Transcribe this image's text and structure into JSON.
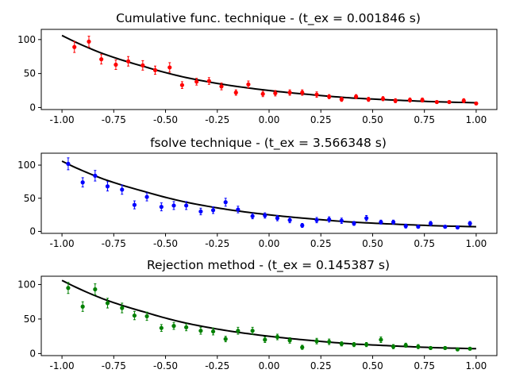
{
  "chart_data": [
    {
      "type": "scatter",
      "title": "Cumulative func. technique - (t_ex = 0.001846 s)",
      "xlabel": "",
      "ylabel": "",
      "xlim": [
        -1.1,
        1.1
      ],
      "ylim": [
        -3,
        115
      ],
      "xticks": [
        "-1.00",
        "-0.75",
        "-0.50",
        "-0.25",
        "0.00",
        "0.25",
        "0.50",
        "0.75",
        "1.00"
      ],
      "yticks": [
        "0",
        "50",
        "100"
      ],
      "grid": false,
      "colors": {
        "points": "#ff0000",
        "fit": "#000000"
      },
      "points": {
        "x": [
          -0.94,
          -0.87,
          -0.81,
          -0.74,
          -0.68,
          -0.61,
          -0.55,
          -0.48,
          -0.42,
          -0.35,
          -0.29,
          -0.23,
          -0.16,
          -0.1,
          -0.03,
          0.03,
          0.1,
          0.16,
          0.23,
          0.29,
          0.35,
          0.42,
          0.48,
          0.55,
          0.61,
          0.68,
          0.74,
          0.81,
          0.87,
          0.94,
          1.0
        ],
        "y": [
          89,
          97,
          71,
          63,
          68,
          62,
          55,
          59,
          33,
          38,
          39,
          31,
          22,
          34,
          20,
          21,
          22,
          22,
          19,
          16,
          12,
          16,
          12,
          13,
          10,
          11,
          11,
          8,
          8,
          10,
          6
        ],
        "err": [
          8,
          8,
          7,
          7,
          7,
          7,
          6,
          7,
          5,
          5,
          5,
          5,
          4,
          5,
          4,
          4,
          4,
          4,
          4,
          3,
          3,
          3,
          3,
          3,
          3,
          3,
          3,
          2,
          2,
          3,
          2
        ]
      },
      "fit": {
        "x": [
          -1.0,
          -0.8,
          -0.6,
          -0.4,
          -0.2,
          0.0,
          0.2,
          0.4,
          0.6,
          0.8,
          1.0
        ],
        "y": [
          106,
          79,
          60,
          44,
          33,
          25,
          19,
          14,
          11,
          8.5,
          7
        ]
      }
    },
    {
      "type": "scatter",
      "title": "fsolve technique - (t_ex = 3.566348 s)",
      "xlabel": "",
      "ylabel": "",
      "xlim": [
        -1.1,
        1.1
      ],
      "ylim": [
        -3,
        118
      ],
      "xticks": [
        "-1.00",
        "-0.75",
        "-0.50",
        "-0.25",
        "0.00",
        "0.25",
        "0.50",
        "0.75",
        "1.00"
      ],
      "yticks": [
        "0",
        "50",
        "100"
      ],
      "grid": false,
      "colors": {
        "points": "#0000ff",
        "fit": "#000000"
      },
      "points": {
        "x": [
          -0.97,
          -0.9,
          -0.84,
          -0.78,
          -0.71,
          -0.65,
          -0.59,
          -0.52,
          -0.46,
          -0.4,
          -0.33,
          -0.27,
          -0.21,
          -0.15,
          -0.08,
          -0.02,
          0.04,
          0.1,
          0.16,
          0.23,
          0.29,
          0.35,
          0.41,
          0.47,
          0.54,
          0.6,
          0.66,
          0.72,
          0.78,
          0.85,
          0.91,
          0.97
        ],
        "y": [
          102,
          74,
          84,
          68,
          63,
          40,
          52,
          37,
          39,
          39,
          30,
          32,
          44,
          33,
          23,
          24,
          20,
          17,
          9,
          17,
          18,
          16,
          12,
          20,
          14,
          14,
          8,
          7,
          12,
          7,
          6,
          12
        ],
        "err": [
          9,
          7,
          8,
          7,
          7,
          6,
          6,
          6,
          6,
          6,
          5,
          5,
          6,
          5,
          4,
          4,
          4,
          4,
          3,
          4,
          4,
          4,
          3,
          4,
          3,
          3,
          3,
          2,
          3,
          2,
          2,
          3
        ]
      },
      "fit": {
        "x": [
          -1.0,
          -0.8,
          -0.6,
          -0.4,
          -0.2,
          0.0,
          0.2,
          0.4,
          0.6,
          0.8,
          1.0
        ],
        "y": [
          106,
          79,
          60,
          44,
          33,
          25,
          19,
          14,
          11,
          8.5,
          7
        ]
      }
    },
    {
      "type": "scatter",
      "title": "Rejection method - (t_ex = 0.145387 s)",
      "xlabel": "",
      "ylabel": "",
      "xlim": [
        -1.1,
        1.1
      ],
      "ylim": [
        -3,
        112
      ],
      "xticks": [
        "-1.00",
        "-0.75",
        "-0.50",
        "-0.25",
        "0.00",
        "0.25",
        "0.50",
        "0.75",
        "1.00"
      ],
      "yticks": [
        "0",
        "50",
        "100"
      ],
      "grid": false,
      "colors": {
        "points": "#008000",
        "fit": "#000000"
      },
      "points": {
        "x": [
          -0.97,
          -0.9,
          -0.84,
          -0.78,
          -0.71,
          -0.65,
          -0.59,
          -0.52,
          -0.46,
          -0.4,
          -0.33,
          -0.27,
          -0.21,
          -0.15,
          -0.08,
          -0.02,
          0.04,
          0.1,
          0.16,
          0.23,
          0.29,
          0.35,
          0.41,
          0.47,
          0.54,
          0.6,
          0.66,
          0.72,
          0.78,
          0.85,
          0.91,
          0.97
        ],
        "y": [
          95,
          68,
          93,
          73,
          66,
          55,
          54,
          37,
          40,
          38,
          33,
          32,
          21,
          33,
          33,
          20,
          24,
          19,
          9,
          18,
          17,
          14,
          13,
          13,
          20,
          10,
          12,
          10,
          8,
          8,
          6,
          7
        ],
        "err": [
          8,
          7,
          8,
          7,
          7,
          6,
          6,
          5,
          5,
          5,
          5,
          5,
          4,
          5,
          5,
          4,
          4,
          4,
          3,
          4,
          4,
          3,
          3,
          3,
          4,
          3,
          3,
          3,
          2,
          2,
          2,
          2
        ]
      },
      "fit": {
        "x": [
          -1.0,
          -0.8,
          -0.6,
          -0.4,
          -0.2,
          0.0,
          0.2,
          0.4,
          0.6,
          0.8,
          1.0
        ],
        "y": [
          106,
          79,
          60,
          44,
          33,
          25,
          19,
          14,
          11,
          8.5,
          7
        ]
      }
    }
  ]
}
